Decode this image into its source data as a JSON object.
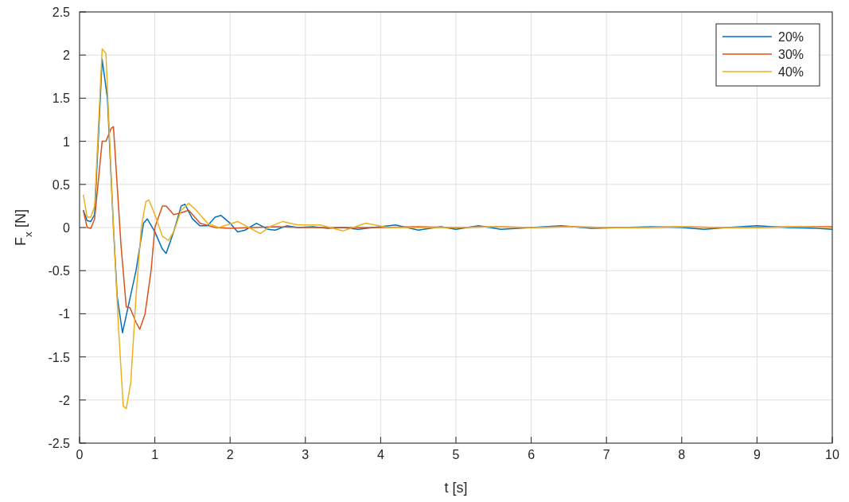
{
  "chart_data": {
    "type": "line",
    "xlabel": "t [s]",
    "ylabel": "F$_{x}$ [N]",
    "xlim": [
      0,
      10
    ],
    "ylim": [
      -2.5,
      2.5
    ],
    "xticks": [
      0,
      1,
      2,
      3,
      4,
      5,
      6,
      7,
      8,
      9,
      10
    ],
    "yticks": [
      -2.5,
      -2,
      -1.5,
      -1,
      -0.5,
      0,
      0.5,
      1,
      1.5,
      2,
      2.5
    ],
    "grid": true,
    "legend": "top right",
    "line_style": "solid",
    "marker": "none",
    "series": [
      {
        "name": "20%",
        "color": "#0072bd",
        "x": [
          0.05,
          0.1,
          0.15,
          0.2,
          0.3,
          0.37,
          0.45,
          0.5,
          0.57,
          0.65,
          0.75,
          0.85,
          0.9,
          1.0,
          1.1,
          1.15,
          1.25,
          1.35,
          1.4,
          1.5,
          1.6,
          1.7,
          1.8,
          1.88,
          2.0,
          2.1,
          2.2,
          2.35,
          2.5,
          2.6,
          2.75,
          2.9,
          3.1,
          3.3,
          3.5,
          3.7,
          3.9,
          4.2,
          4.5,
          4.8,
          5.0,
          5.3,
          5.6,
          6.0,
          6.4,
          6.8,
          7.2,
          7.6,
          8.0,
          8.3,
          8.6,
          9.0,
          9.4,
          9.8,
          10
        ],
        "values": [
          0.2,
          0.08,
          0.07,
          0.15,
          1.95,
          1.5,
          0.0,
          -0.8,
          -1.22,
          -0.9,
          -0.5,
          0.05,
          0.1,
          -0.05,
          -0.25,
          -0.3,
          -0.05,
          0.25,
          0.27,
          0.1,
          0.02,
          0.02,
          0.12,
          0.14,
          0.05,
          -0.05,
          -0.03,
          0.05,
          -0.02,
          -0.03,
          0.02,
          0.0,
          0.01,
          -0.01,
          0.0,
          -0.02,
          0.0,
          0.03,
          -0.03,
          0.01,
          -0.02,
          0.02,
          -0.02,
          0.0,
          0.02,
          -0.01,
          0.0,
          0.01,
          0.0,
          -0.02,
          0.0,
          0.02,
          0.0,
          -0.01,
          -0.02
        ]
      },
      {
        "name": "30%",
        "color": "#d95319",
        "x": [
          0.05,
          0.1,
          0.15,
          0.2,
          0.3,
          0.35,
          0.42,
          0.45,
          0.55,
          0.62,
          0.67,
          0.75,
          0.8,
          0.87,
          0.95,
          1.0,
          1.1,
          1.15,
          1.25,
          1.35,
          1.45,
          1.6,
          1.8,
          2.0,
          2.3,
          2.6,
          3.0,
          3.5,
          4.0,
          4.5,
          5.0,
          5.5,
          6.0,
          6.5,
          7.0,
          7.5,
          8.0,
          8.5,
          9.0,
          9.5,
          10
        ],
        "values": [
          0.2,
          0.0,
          -0.01,
          0.1,
          1.0,
          1.0,
          1.15,
          1.17,
          -0.2,
          -0.92,
          -0.93,
          -1.1,
          -1.18,
          -1.0,
          -0.5,
          0.0,
          0.25,
          0.25,
          0.15,
          0.17,
          0.2,
          0.05,
          0.0,
          -0.01,
          0.0,
          0.01,
          0.0,
          0.0,
          0.0,
          0.01,
          0.0,
          0.01,
          0.0,
          0.01,
          0.0,
          0.0,
          0.01,
          0.0,
          0.0,
          0.01,
          0.01
        ]
      },
      {
        "name": "40%",
        "color": "#edb120",
        "x": [
          0.05,
          0.1,
          0.15,
          0.2,
          0.3,
          0.35,
          0.45,
          0.52,
          0.58,
          0.62,
          0.68,
          0.75,
          0.82,
          0.88,
          0.92,
          1.0,
          1.1,
          1.18,
          1.25,
          1.35,
          1.45,
          1.55,
          1.7,
          1.85,
          2.1,
          2.25,
          2.4,
          2.55,
          2.7,
          2.9,
          3.2,
          3.5,
          3.8,
          4.1,
          4.5,
          5.0,
          5.5,
          6.0,
          6.5,
          7.0,
          7.5,
          8.0,
          8.5,
          9.0,
          9.5,
          10
        ],
        "values": [
          0.38,
          0.12,
          0.12,
          0.25,
          2.07,
          2.02,
          0.0,
          -1.2,
          -2.07,
          -2.1,
          -1.8,
          -0.8,
          0.0,
          0.3,
          0.32,
          0.15,
          -0.1,
          -0.15,
          -0.05,
          0.2,
          0.28,
          0.2,
          0.05,
          0.0,
          0.07,
          0.0,
          -0.07,
          0.02,
          0.07,
          0.03,
          0.03,
          -0.04,
          0.05,
          0.0,
          0.0,
          0.0,
          0.01,
          0.0,
          0.01,
          0.0,
          0.0,
          0.01,
          0.0,
          0.0,
          0.01,
          0.0
        ]
      }
    ]
  }
}
